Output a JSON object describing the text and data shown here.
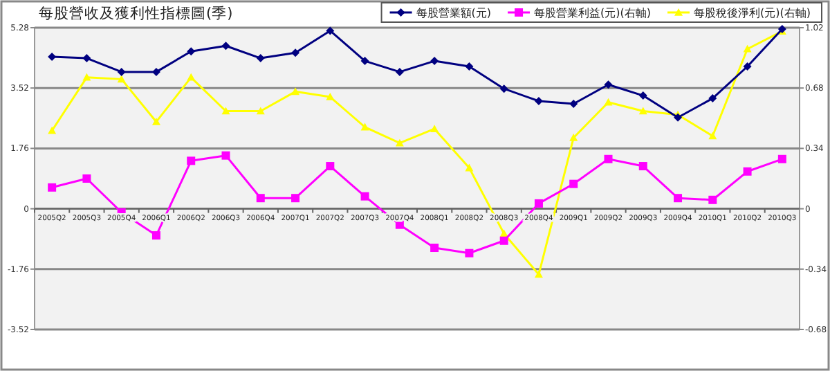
{
  "chart_data": {
    "type": "line",
    "title": "每股營收及獲利性指標圖(季)",
    "categories": [
      "2005Q2",
      "2005Q3",
      "2005Q4",
      "2006Q1",
      "2006Q2",
      "2006Q3",
      "2006Q4",
      "2007Q1",
      "2007Q2",
      "2007Q3",
      "2007Q4",
      "2008Q1",
      "2008Q2",
      "2008Q3",
      "2008Q4",
      "2009Q1",
      "2009Q2",
      "2009Q3",
      "2009Q4",
      "2010Q1",
      "2010Q2",
      "2010Q3"
    ],
    "series": [
      {
        "name": "每股營業額(元)",
        "color": "#000080",
        "marker": "diamond",
        "values": [
          4.43,
          4.39,
          3.99,
          3.99,
          4.59,
          4.75,
          4.39,
          4.55,
          5.19,
          4.31,
          3.99,
          4.31,
          4.15,
          3.5,
          3.14,
          3.06,
          3.62,
          3.3,
          2.66,
          3.22,
          4.15,
          5.24
        ]
      },
      {
        "name": "每股營業利益(元)(右軸)",
        "color": "#ff00ff",
        "marker": "square",
        "axis": "y2",
        "values": [
          0.12,
          0.17,
          -0.02,
          -0.15,
          0.27,
          0.3,
          0.06,
          0.06,
          0.24,
          0.07,
          -0.09,
          -0.22,
          -0.25,
          -0.18,
          0.03,
          0.14,
          0.28,
          0.24,
          0.06,
          0.05,
          0.21,
          0.28
        ]
      },
      {
        "name": "每股稅後淨利(元)(右軸)",
        "color": "#ffff00",
        "marker": "triangle",
        "axis": "y2",
        "values": [
          0.44,
          0.74,
          0.73,
          0.49,
          0.74,
          0.55,
          0.55,
          0.66,
          0.63,
          0.46,
          0.37,
          0.45,
          0.23,
          -0.14,
          -0.37,
          0.4,
          0.6,
          0.55,
          0.53,
          0.41,
          0.9,
          1.0
        ]
      }
    ],
    "ylim": [
      -3.52,
      5.28
    ],
    "yticks": [
      -3.52,
      -1.76,
      0,
      1.76,
      3.52,
      5.28
    ],
    "y2lim": [
      -0.68,
      1.02
    ],
    "y2ticks": [
      -0.68,
      -0.34,
      0,
      0.34,
      0.68,
      1.02
    ],
    "grid": "y",
    "legend": "top right"
  }
}
